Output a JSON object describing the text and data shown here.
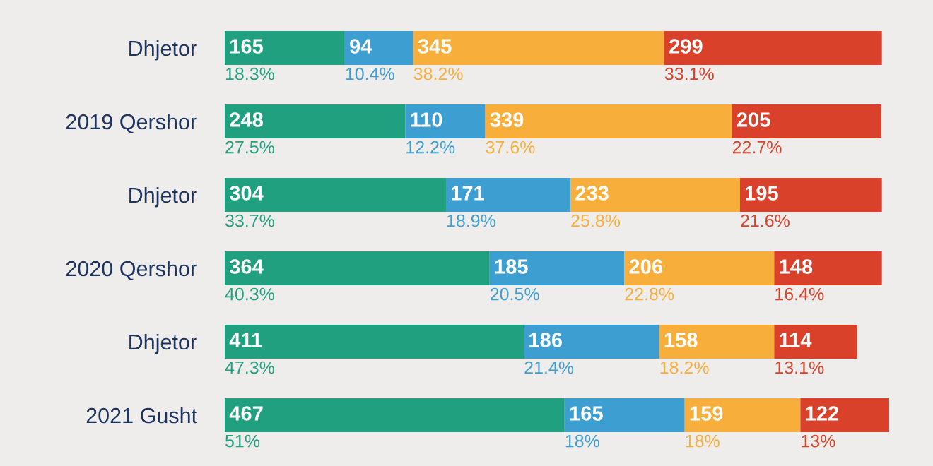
{
  "chart_data": {
    "type": "bar",
    "orientation": "horizontal",
    "stacked": true,
    "data_labels": true,
    "legend": false,
    "grid": false,
    "categories": [
      "Dhjetor",
      "2019 Qershor",
      "Dhjetor",
      "2020 Qershor",
      "Dhjetor",
      "2021 Gusht"
    ],
    "series": [
      {
        "color": "#21a07f",
        "values": [
          165,
          248,
          304,
          364,
          411,
          467
        ]
      },
      {
        "color": "#3d9fd1",
        "values": [
          94,
          110,
          171,
          185,
          186,
          165
        ]
      },
      {
        "color": "#f7ae3b",
        "values": [
          345,
          339,
          233,
          206,
          158,
          159
        ]
      },
      {
        "color": "#d9412a",
        "values": [
          299,
          205,
          195,
          148,
          114,
          122
        ]
      }
    ],
    "annotations": [
      "18.3%",
      "10.4%",
      "38.2%",
      "33.1%",
      "27.5%",
      "12.2%",
      "37.6%",
      "22.7%",
      "33.7%",
      "18.9%",
      "25.8%",
      "21.6%",
      "40.3%",
      "20.5%",
      "22.8%",
      "16.4%",
      "47.3%",
      "21.4%",
      "18.2%",
      "13.1%",
      "51%",
      "18%",
      "18%",
      "13%"
    ]
  }
}
